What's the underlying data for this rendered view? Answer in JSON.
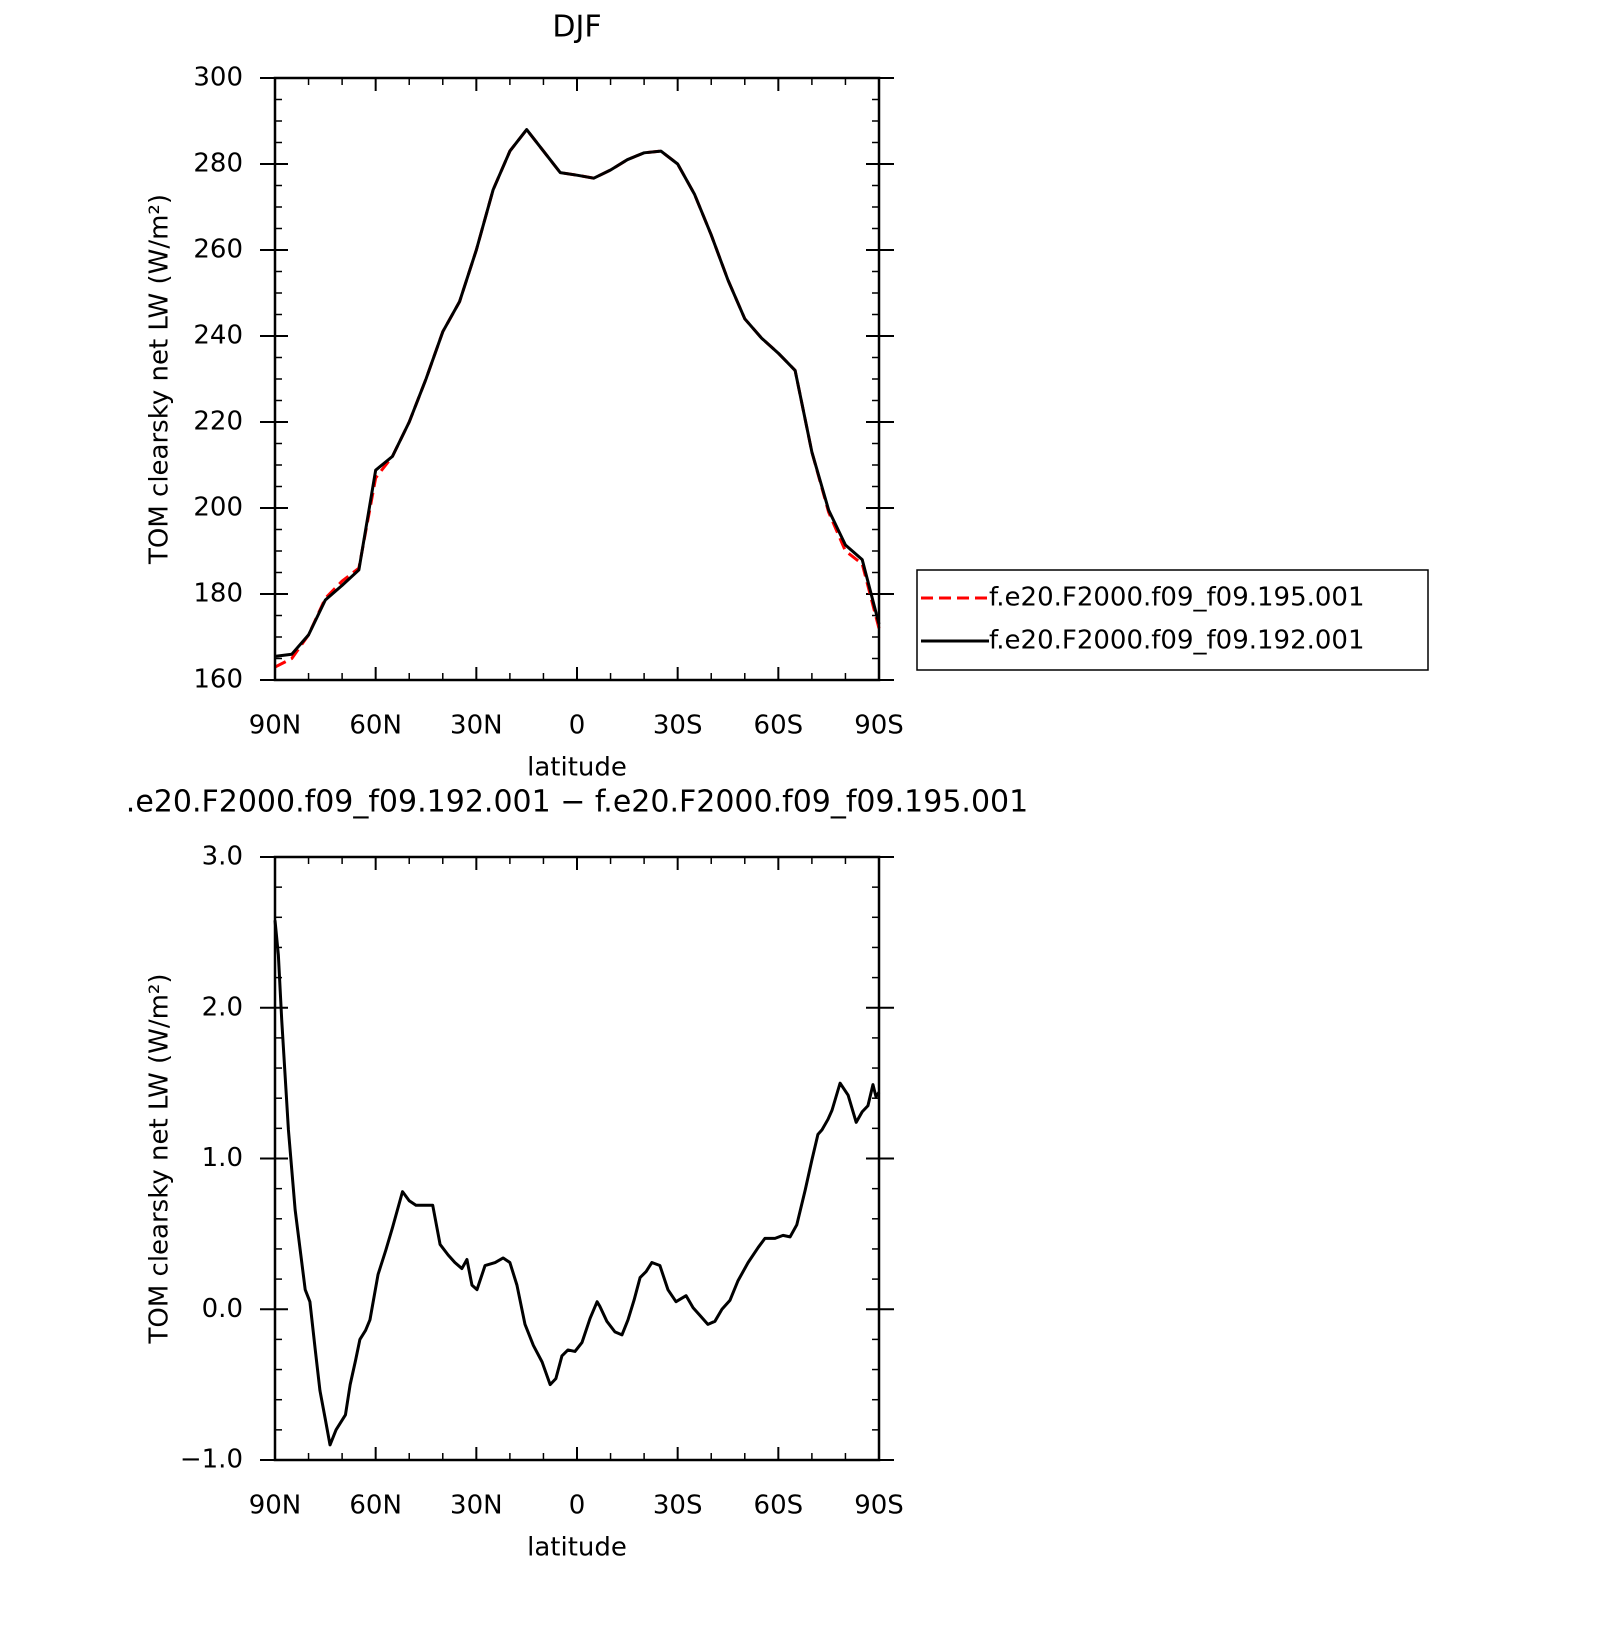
{
  "chart_data": [
    {
      "type": "line",
      "title": "DJF",
      "x_label": "latitude",
      "y_label": "TOM clearsky net LW (W/m²)",
      "x": [
        90,
        85,
        80,
        75,
        70,
        65,
        60,
        55,
        50,
        45,
        40,
        35,
        30,
        25,
        20,
        15,
        10,
        5,
        0,
        -5,
        -10,
        -15,
        -20,
        -25,
        -30,
        -35,
        -40,
        -45,
        -50,
        -55,
        -60,
        -65,
        -70,
        -75,
        -80,
        -85,
        -90
      ],
      "series": [
        {
          "name": "f.e20.F2000.f09_f09.195.001",
          "color": "#ff0000",
          "dash": true,
          "values": [
            163,
            165,
            170.5,
            179,
            183,
            186,
            207,
            212,
            220,
            230,
            241,
            248,
            260,
            274,
            283,
            288,
            283,
            278,
            277.4,
            276.7,
            278.6,
            281,
            282.6,
            283,
            280,
            273,
            263.5,
            253,
            244,
            239.5,
            236,
            232,
            213,
            199,
            190,
            187,
            172
          ]
        },
        {
          "name": "f.e20.F2000.f09_f09.192.001",
          "color": "#000000",
          "dash": false,
          "values": [
            165.5,
            166,
            170.5,
            178.6,
            182,
            185.6,
            208.8,
            212,
            220,
            230,
            241,
            248,
            260,
            274,
            283,
            288,
            283,
            278,
            277.4,
            276.7,
            278.6,
            281,
            282.6,
            283,
            280,
            273,
            263.5,
            253,
            244,
            239.5,
            236,
            232,
            213,
            199.5,
            191.4,
            188,
            173
          ]
        }
      ],
      "xlim": [
        90,
        -90
      ],
      "xticks": [
        {
          "value": 90,
          "label": "90N"
        },
        {
          "value": 60,
          "label": "60N"
        },
        {
          "value": 30,
          "label": "30N"
        },
        0,
        {
          "value": -30,
          "label": "30S"
        },
        {
          "value": -60,
          "label": "60S"
        },
        {
          "value": -90,
          "label": "90S"
        }
      ],
      "xminorticks": [
        80,
        70,
        50,
        40,
        20,
        10,
        -10,
        -20,
        -40,
        -50,
        -70,
        -80
      ],
      "ylim": [
        160,
        300
      ],
      "yticks": [
        160,
        180,
        200,
        220,
        240,
        260,
        280,
        300
      ],
      "yminorticks": [
        165,
        170,
        175,
        185,
        190,
        195,
        205,
        210,
        215,
        225,
        230,
        235,
        245,
        250,
        255,
        265,
        270,
        275,
        285,
        290,
        295
      ],
      "legend": "right"
    },
    {
      "type": "line",
      "title": ".e20.F2000.f09_f09.192.001 − f.e20.F2000.f09_f09.195.001",
      "x_label": "latitude",
      "y_label": "TOM clearsky net LW (W/m²)",
      "x": [
        90,
        89,
        88,
        86,
        84,
        81,
        79.6,
        78,
        76.6,
        75,
        73.6,
        71.8,
        69,
        67.6,
        66,
        64.7,
        63,
        61.7,
        59.3,
        57,
        55,
        52,
        50,
        48,
        45,
        43,
        40.8,
        38.4,
        36.4,
        34.3,
        32.8,
        31.3,
        29.8,
        27.4,
        24.4,
        22,
        20,
        17.9,
        15.5,
        13,
        10.4,
        8,
        6.3,
        4.5,
        2.7,
        0.6,
        -1.5,
        -3.9,
        -6,
        -6.8,
        -8.9,
        -11.3,
        -13.4,
        -15.2,
        -17,
        -18.8,
        -20.6,
        -22.3,
        -24.7,
        -27.1,
        -29.5,
        -32.5,
        -34.6,
        -36.6,
        -39,
        -41.1,
        -43.2,
        -45.6,
        -48,
        -51,
        -54,
        -56,
        -59,
        -61.4,
        -63.5,
        -65.5,
        -68,
        -70,
        -71.8,
        -73,
        -74.8,
        -76,
        -78.4,
        -80.8,
        -83.2,
        -85,
        -86.7,
        -88.2,
        -89.1,
        -90
      ],
      "series": [
        {
          "name": null,
          "color": "#000000",
          "dash": false,
          "values": [
            2.58,
            2.35,
            1.92,
            1.19,
            0.66,
            0.13,
            0.05,
            -0.27,
            -0.54,
            -0.73,
            -0.9,
            -0.8,
            -0.7,
            -0.5,
            -0.34,
            -0.2,
            -0.14,
            -0.07,
            0.23,
            0.39,
            0.54,
            0.78,
            0.72,
            0.69,
            0.69,
            0.69,
            0.43,
            0.36,
            0.31,
            0.27,
            0.33,
            0.16,
            0.13,
            0.29,
            0.31,
            0.34,
            0.31,
            0.16,
            -0.1,
            -0.24,
            -0.35,
            -0.5,
            -0.46,
            -0.31,
            -0.27,
            -0.28,
            -0.22,
            -0.06,
            0.05,
            0.02,
            -0.08,
            -0.15,
            -0.17,
            -0.07,
            0.06,
            0.21,
            0.25,
            0.31,
            0.29,
            0.13,
            0.05,
            0.09,
            0.01,
            -0.04,
            -0.1,
            -0.08,
            0,
            0.06,
            0.19,
            0.31,
            0.41,
            0.47,
            0.47,
            0.49,
            0.48,
            0.56,
            0.79,
            0.99,
            1.16,
            1.19,
            1.26,
            1.32,
            1.5,
            1.42,
            1.24,
            1.31,
            1.35,
            1.49,
            1.41,
            1.44
          ]
        }
      ],
      "xlim": [
        90,
        -90
      ],
      "xticks": [
        {
          "value": 90,
          "label": "90N"
        },
        {
          "value": 60,
          "label": "60N"
        },
        {
          "value": 30,
          "label": "30N"
        },
        0,
        {
          "value": -30,
          "label": "30S"
        },
        {
          "value": -60,
          "label": "60S"
        },
        {
          "value": -90,
          "label": "90S"
        }
      ],
      "xminorticks": [
        80,
        70,
        50,
        40,
        20,
        10,
        -10,
        -20,
        -40,
        -50,
        -70,
        -80
      ],
      "ylim": [
        -1,
        3
      ],
      "yticks": [
        {
          "value": -1,
          "label": "−1.0"
        },
        {
          "value": 0,
          "label": "0.0"
        },
        {
          "value": 1,
          "label": "1.0"
        },
        {
          "value": 2,
          "label": "2.0"
        },
        {
          "value": 3,
          "label": "3.0"
        }
      ],
      "yminorticks": [
        -0.8,
        -0.6,
        -0.4,
        -0.2,
        0.2,
        0.4,
        0.6,
        0.8,
        1.2,
        1.4,
        1.6,
        1.8,
        2.2,
        2.4,
        2.6,
        2.8
      ]
    }
  ]
}
